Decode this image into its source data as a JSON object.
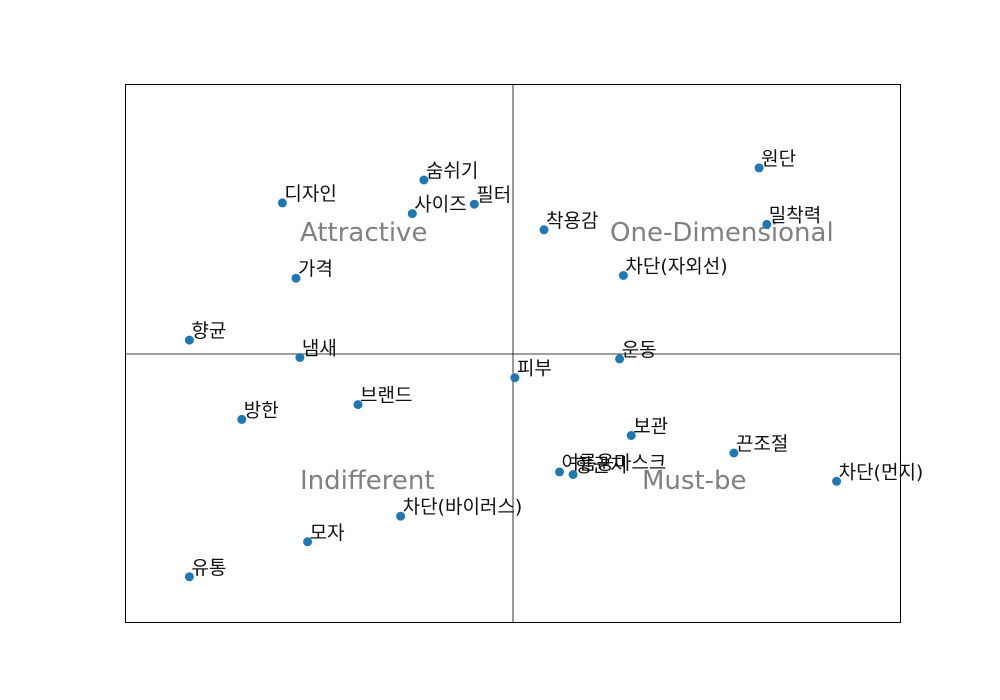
{
  "chart_data": {
    "type": "scatter",
    "xlim": [
      -1.0,
      1.0
    ],
    "ylim": [
      -1.0,
      1.0
    ],
    "grid": false,
    "point_color": "#1f77b4",
    "quadrant_label_color": "#808080",
    "quadrants": {
      "top_left": "Attractive",
      "top_right": "One-Dimensional",
      "bottom_left": "Indifferent",
      "bottom_right": "Must-be"
    },
    "points": [
      {
        "label": "원단",
        "x": 0.635,
        "y": 0.69
      },
      {
        "label": "밀착력",
        "x": 0.655,
        "y": 0.48
      },
      {
        "label": "착용감",
        "x": 0.08,
        "y": 0.46
      },
      {
        "label": "차단(자외선)",
        "x": 0.285,
        "y": 0.29
      },
      {
        "label": "운동",
        "x": 0.275,
        "y": -0.02
      },
      {
        "label": "숨쉬기",
        "x": -0.23,
        "y": 0.645
      },
      {
        "label": "필터",
        "x": -0.1,
        "y": 0.555
      },
      {
        "label": "사이즈",
        "x": -0.26,
        "y": 0.52
      },
      {
        "label": "디자인",
        "x": -0.595,
        "y": 0.56
      },
      {
        "label": "가격",
        "x": -0.56,
        "y": 0.28
      },
      {
        "label": "향균",
        "x": -0.835,
        "y": 0.05
      },
      {
        "label": "냄새",
        "x": -0.55,
        "y": -0.015
      },
      {
        "label": "피부",
        "x": 0.005,
        "y": -0.09
      },
      {
        "label": "방한",
        "x": -0.7,
        "y": -0.245
      },
      {
        "label": "브랜드",
        "x": -0.4,
        "y": -0.19
      },
      {
        "label": "보관",
        "x": 0.305,
        "y": -0.305
      },
      {
        "label": "끈조절",
        "x": 0.57,
        "y": -0.37
      },
      {
        "label": "차단(먼지)",
        "x": 0.835,
        "y": -0.475
      },
      {
        "label": "여름용마스크",
        "x": 0.12,
        "y": -0.44
      },
      {
        "label": "향균지",
        "x": 0.155,
        "y": -0.45
      },
      {
        "label": "차단(바이러스)",
        "x": -0.29,
        "y": -0.605
      },
      {
        "label": "모자",
        "x": -0.53,
        "y": -0.7
      },
      {
        "label": "유통",
        "x": -0.835,
        "y": -0.83
      }
    ]
  }
}
